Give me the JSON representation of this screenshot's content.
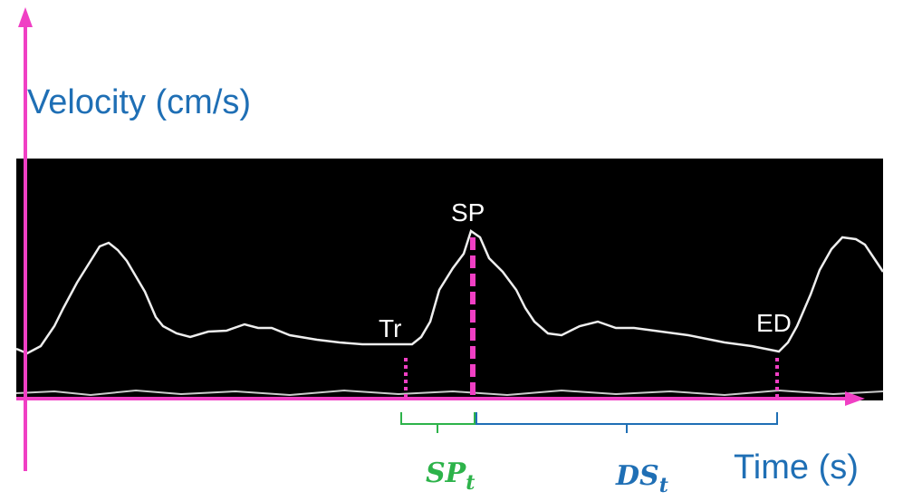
{
  "axes": {
    "y_label": "Velocity (cm/s)",
    "x_label": "Time (s)"
  },
  "points": [
    {
      "label": "Tr"
    },
    {
      "label": "SP"
    },
    {
      "label": "ED"
    }
  ],
  "intervals": [
    {
      "label": "SP",
      "subscript": "t"
    },
    {
      "label": "DS",
      "subscript": "t"
    }
  ]
}
